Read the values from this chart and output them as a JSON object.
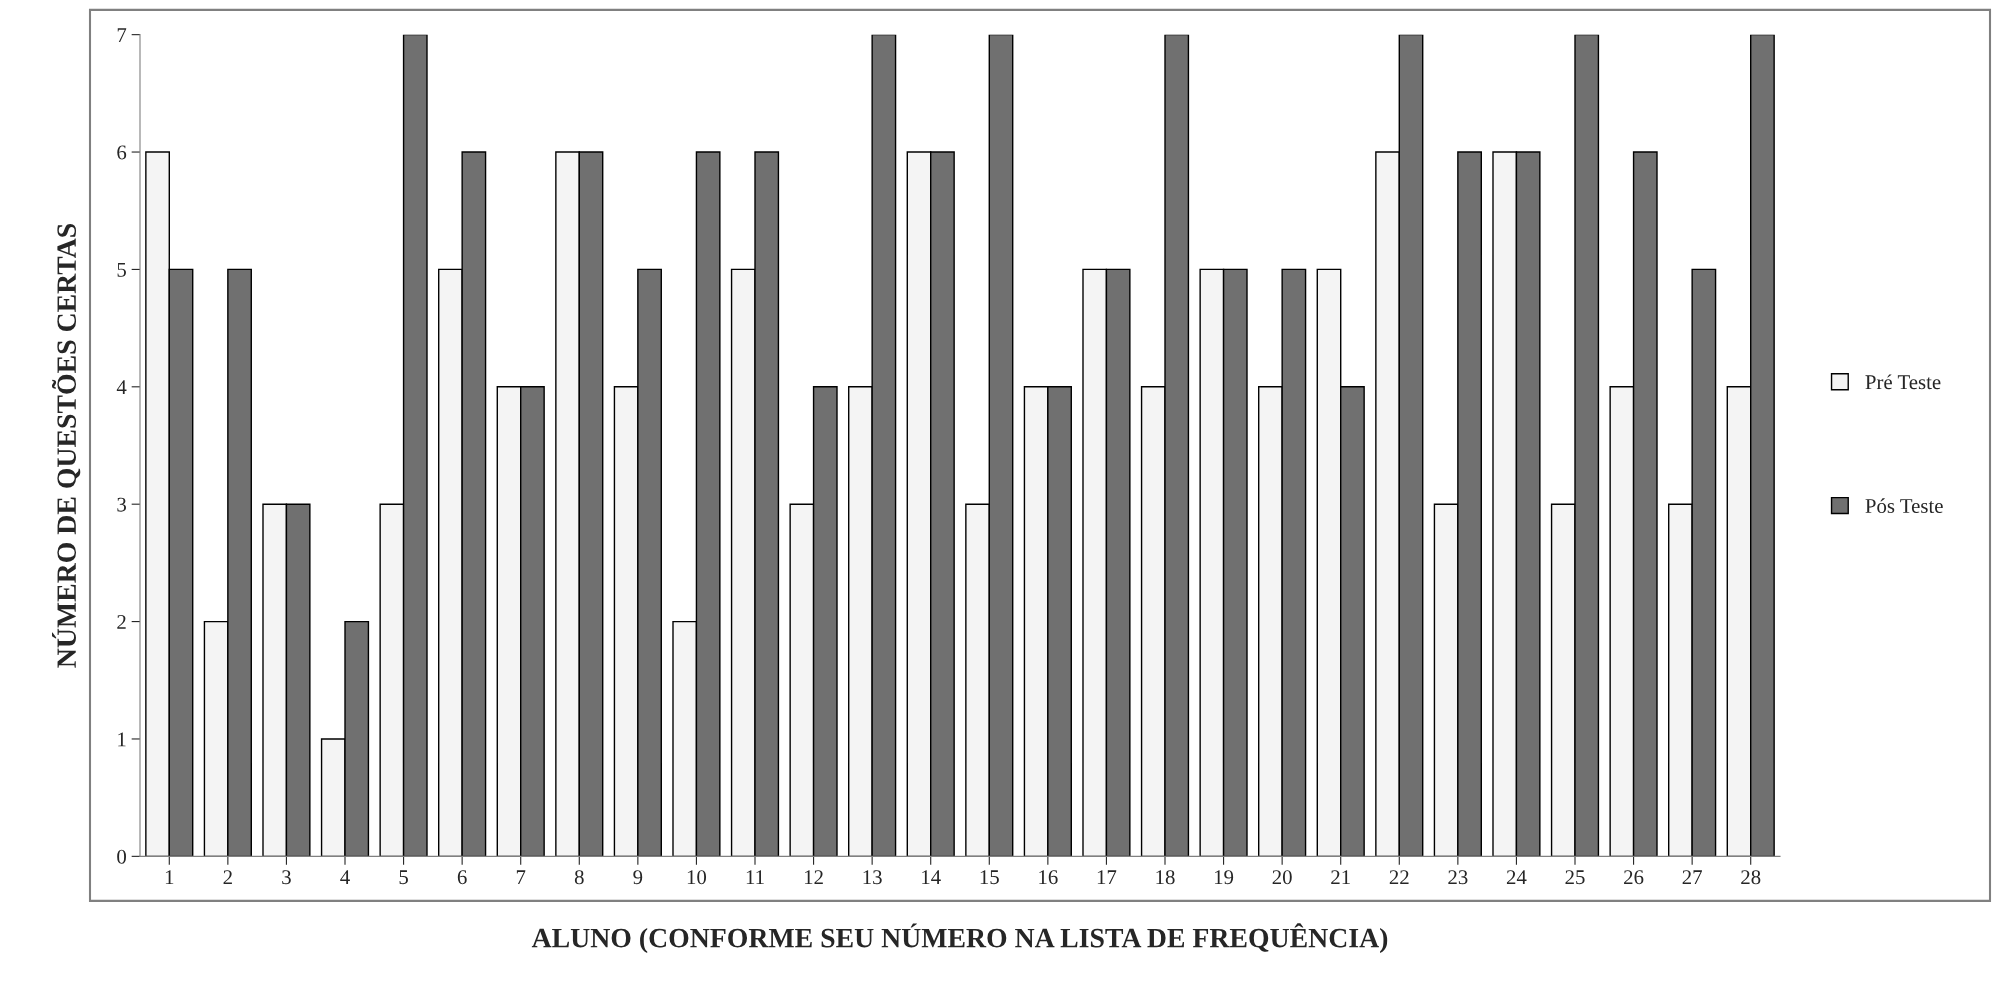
{
  "chart_data": {
    "type": "bar",
    "xlabel": "ALUNO (CONFORME SEU NÚMERO NA LISTA DE FREQUÊNCIA)",
    "ylabel": "NÚMERO DE QUESTÕES CERTAS",
    "categories": [
      "1",
      "2",
      "3",
      "4",
      "5",
      "6",
      "7",
      "8",
      "9",
      "10",
      "11",
      "12",
      "13",
      "14",
      "15",
      "16",
      "17",
      "18",
      "19",
      "20",
      "21",
      "22",
      "23",
      "24",
      "25",
      "26",
      "27",
      "28"
    ],
    "series": [
      {
        "name": "Pré Teste",
        "color": "#f4f4f4",
        "values": [
          6,
          2,
          3,
          1,
          3,
          5,
          4,
          6,
          4,
          2,
          5,
          3,
          4,
          6,
          3,
          4,
          5,
          4,
          5,
          4,
          5,
          6,
          3,
          6,
          3,
          4,
          3,
          4
        ]
      },
      {
        "name": "Pós Teste",
        "color": "#707070",
        "values": [
          5,
          5,
          3,
          2,
          7,
          6,
          4,
          6,
          5,
          6,
          6,
          4,
          7,
          6,
          7,
          4,
          5,
          7,
          5,
          5,
          4,
          7,
          6,
          6,
          7,
          6,
          5,
          7
        ]
      }
    ],
    "ylim": [
      0,
      7
    ],
    "yticks": [
      0,
      1,
      2,
      3,
      4,
      5,
      6,
      7
    ],
    "grid": false,
    "legend": "right"
  }
}
